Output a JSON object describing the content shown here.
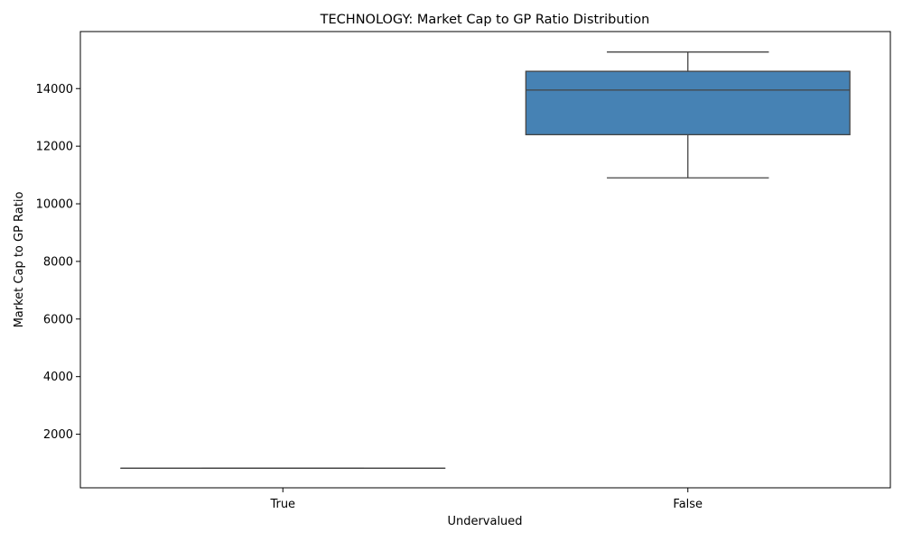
{
  "chart_data": {
    "type": "box",
    "title": "TECHNOLOGY: Market Cap to GP Ratio Distribution",
    "xlabel": "Undervalued",
    "ylabel": "Market Cap to GP Ratio",
    "categories": [
      "True",
      "False"
    ],
    "boxes": [
      {
        "category": "True",
        "whisker_low": 820,
        "q1": 820,
        "median": 820,
        "q3": 820,
        "whisker_high": 820
      },
      {
        "category": "False",
        "whisker_low": 10900,
        "q1": 12400,
        "median": 13950,
        "q3": 14600,
        "whisker_high": 15270
      }
    ],
    "ylim": [
      140,
      15980
    ],
    "yticks": [
      2000,
      4000,
      6000,
      8000,
      10000,
      12000,
      14000
    ],
    "ytick_labels": [
      "2000",
      "4000",
      "6000",
      "8000",
      "10000",
      "12000",
      "14000"
    ],
    "box_color": "#4682b4",
    "line_color": "#444444",
    "grid": false
  }
}
